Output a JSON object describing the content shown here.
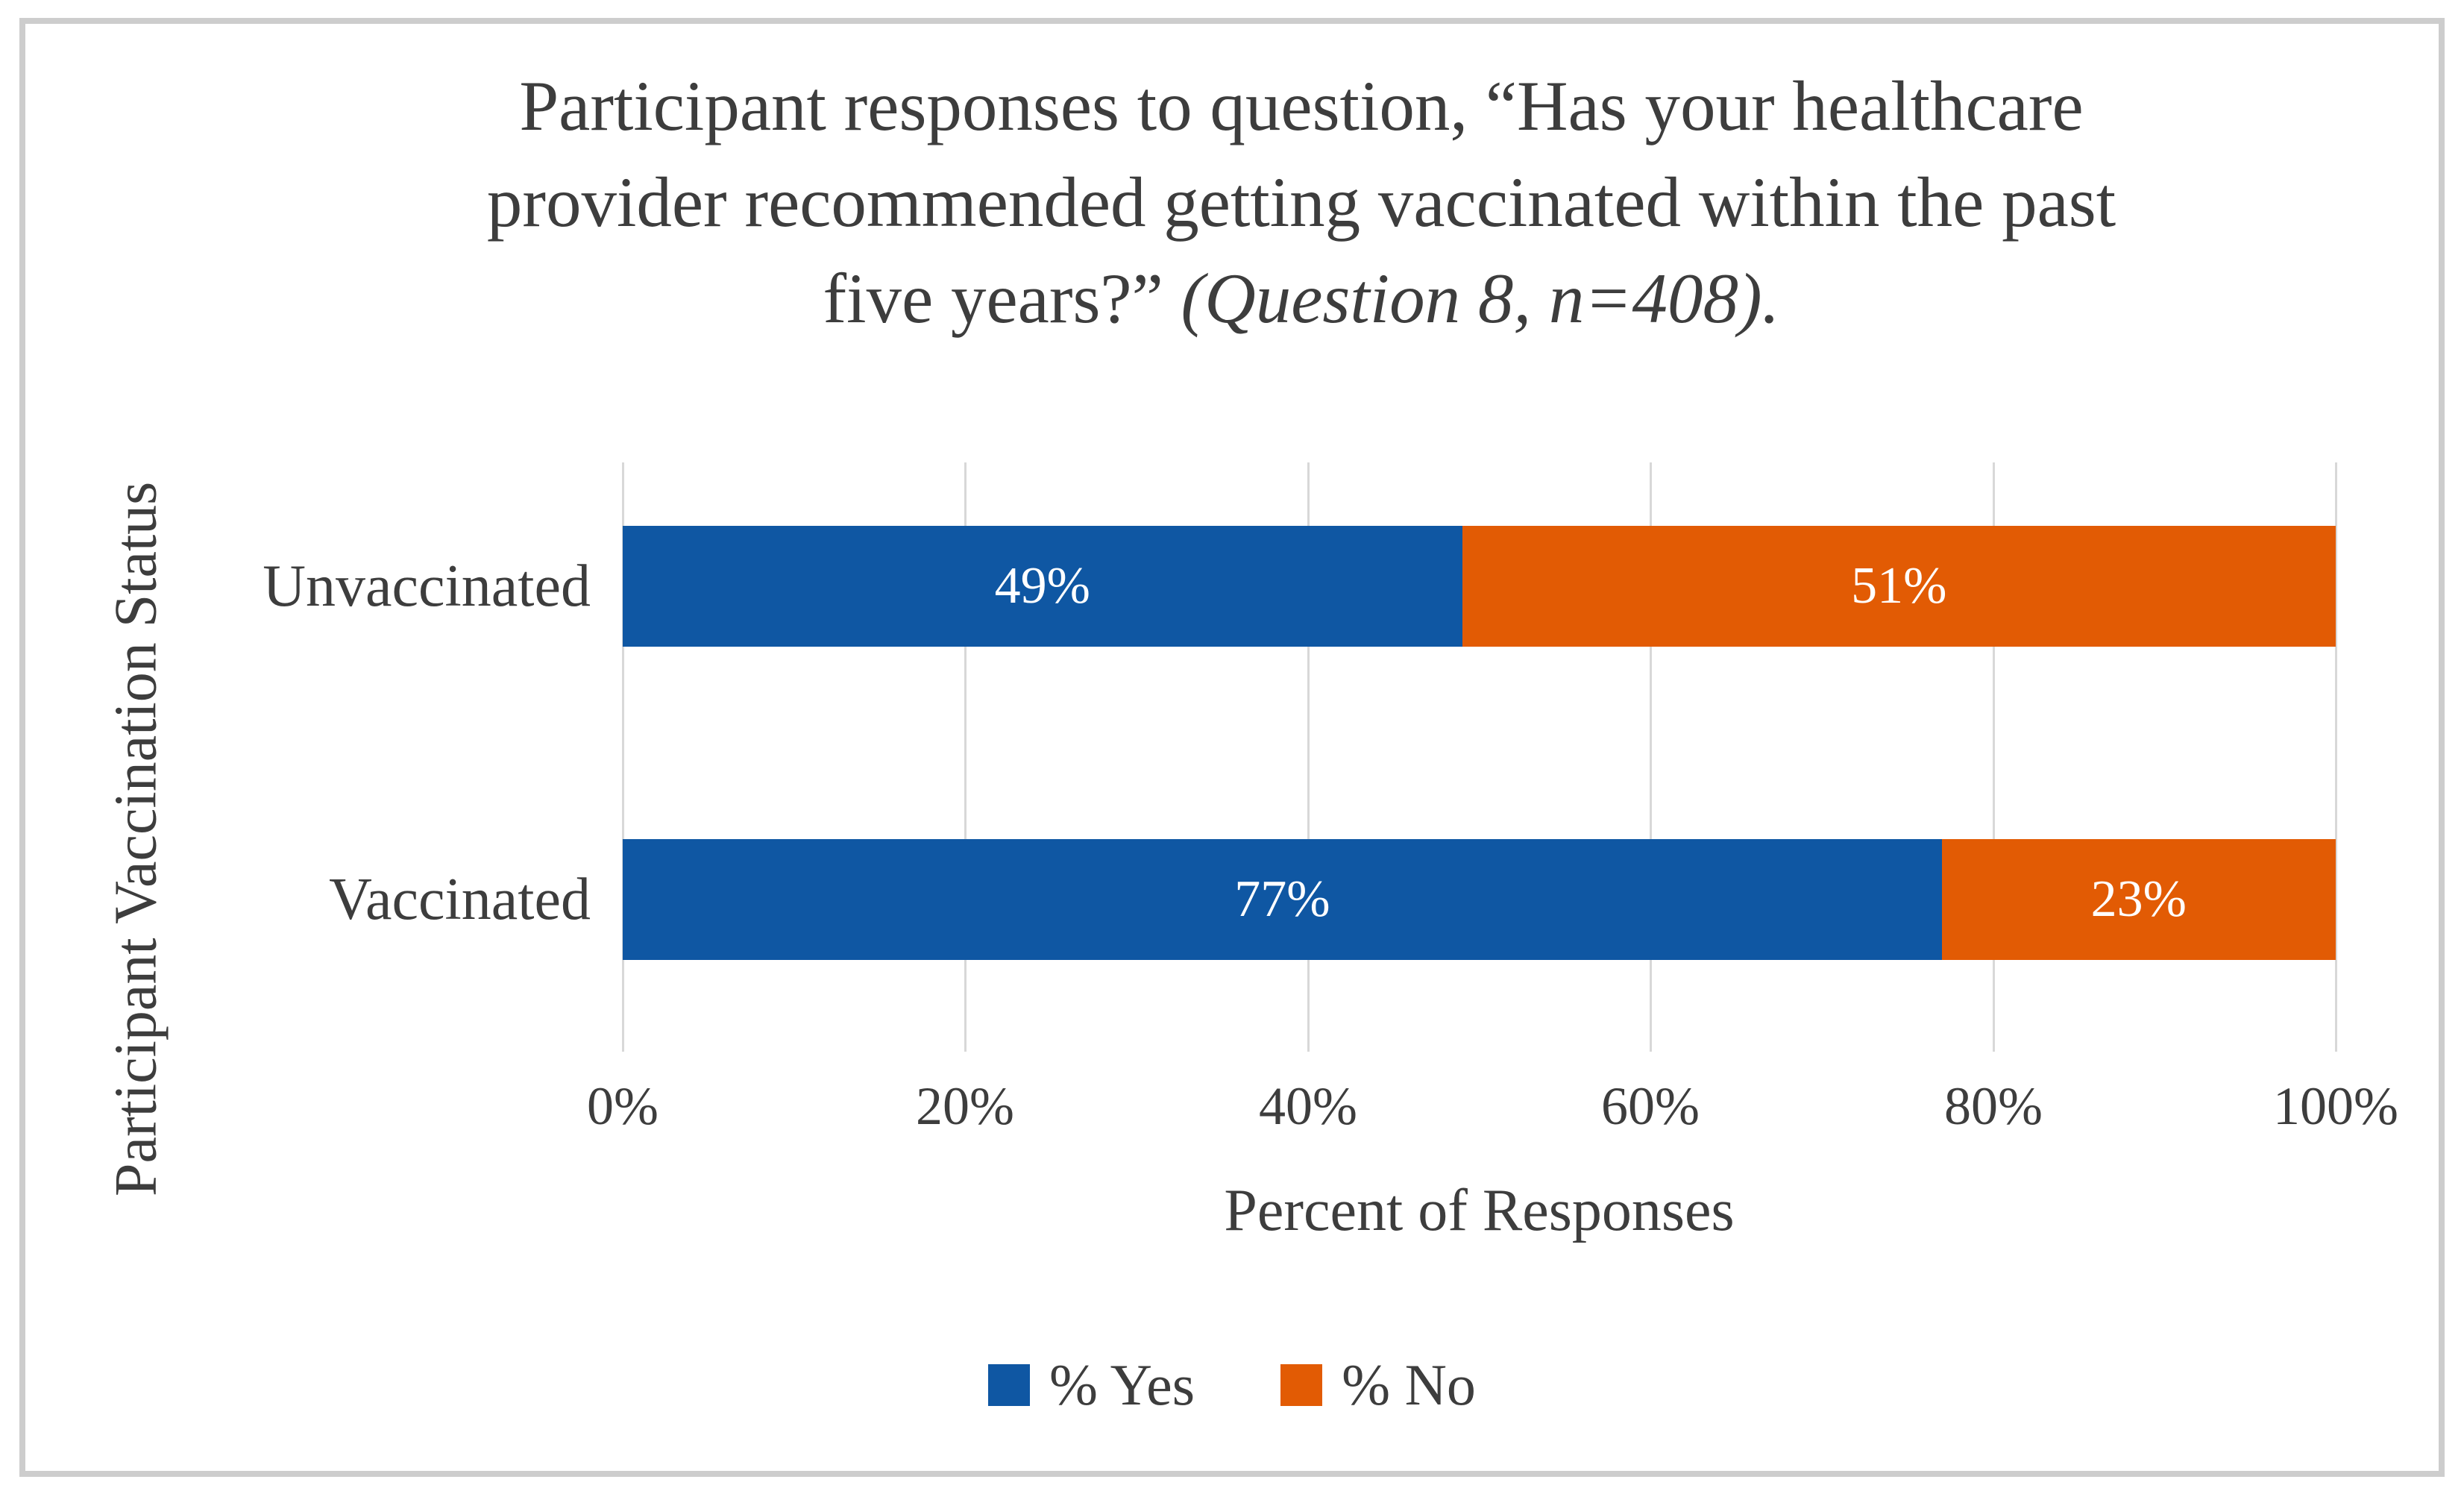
{
  "frame": {
    "border_color": "#cdcdcd",
    "background": "#ffffff"
  },
  "chart_data": {
    "type": "bar",
    "orientation": "horizontal",
    "stacked": true,
    "title": "Participant responses to question, “Has your healthcare provider recommended getting vaccinated within the past five years?” (Question 8, n=408).",
    "title_lines": [
      "Participant responses to question, “Has your healthcare",
      "provider recommended getting vaccinated within the past",
      "five years?”"
    ],
    "title_italic_suffix": "(Question 8, n=408).",
    "categories": [
      "Unvaccinated",
      "Vaccinated"
    ],
    "series": [
      {
        "name": "% Yes",
        "color": "#0f57a3",
        "values": [
          49,
          77
        ]
      },
      {
        "name": "% No",
        "color": "#e25b04",
        "values": [
          51,
          23
        ]
      }
    ],
    "data_labels": [
      [
        "49%",
        "51%"
      ],
      [
        "77%",
        "23%"
      ]
    ],
    "xlabel": "Percent of Responses",
    "ylabel": "Participant Vaccination Status",
    "x_ticks": [
      "0%",
      "20%",
      "40%",
      "60%",
      "80%",
      "100%"
    ],
    "xlim": [
      0,
      100
    ],
    "grid": true,
    "gridline_color": "#d8d8d8",
    "text_color": "#3d3d3d",
    "legend_position": "bottom",
    "legend": [
      {
        "label": "% Yes",
        "color": "#0f57a3"
      },
      {
        "label": "% No",
        "color": "#e25b04"
      }
    ]
  }
}
